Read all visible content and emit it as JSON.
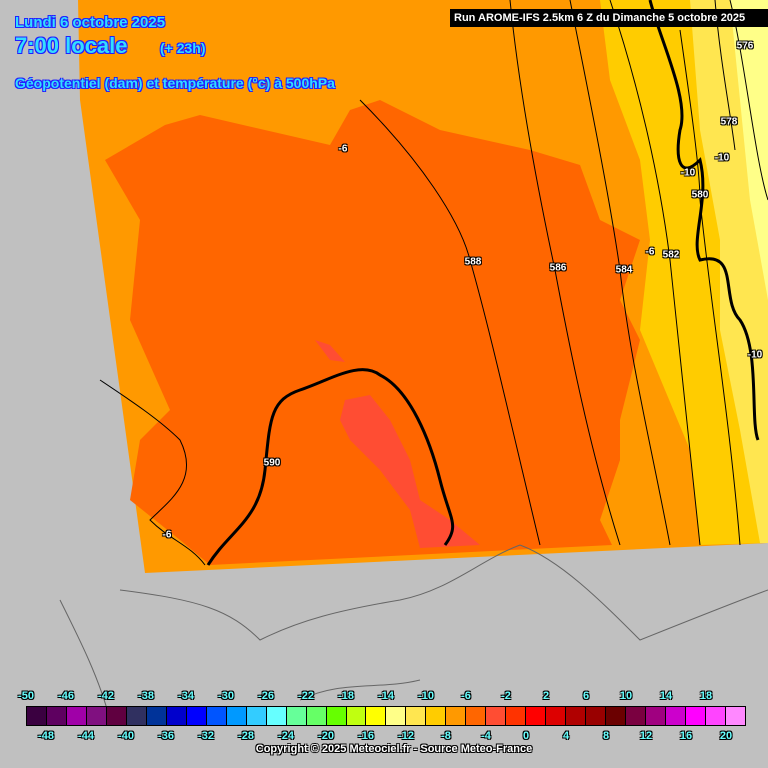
{
  "header": {
    "date": "Lundi 6 octobre 2025",
    "time": "7:00 locale",
    "lead": "(+ 23h)",
    "parameter": "Géopotentiel (dam) et température (°c) à 500hPa",
    "run": "Run AROME-IFS 2.5km 6 Z du Dimanche 5 octobre 2025"
  },
  "contour_labels": [
    "576",
    "578",
    "-10",
    "-10",
    "580",
    "-6",
    "582",
    "584",
    "586",
    "588",
    "-6",
    "590",
    "-6",
    "-10"
  ],
  "colors": {
    "outside_domain": "#c0c0c0",
    "temp_minus_8": "#ffcc00",
    "temp_minus_6": "#ff9900",
    "temp_minus_4": "#ff6600",
    "temp_minus_2": "#ff4d33",
    "temp_minus_10": "#ffe650",
    "temp_minus_12": "#ffff88"
  },
  "legend": {
    "labels": [
      "-50",
      "-48",
      "-46",
      "-44",
      "-42",
      "-40",
      "-38",
      "-36",
      "-34",
      "-32",
      "-30",
      "-28",
      "-26",
      "-24",
      "-22",
      "-20",
      "-18",
      "-16",
      "-14",
      "-12",
      "-10",
      "-8",
      "-6",
      "-4",
      "-2",
      "0",
      "2",
      "4",
      "6",
      "8",
      "10",
      "12",
      "14",
      "16",
      "18",
      "20"
    ],
    "colors": [
      "#3a0040",
      "#5e0060",
      "#a000a8",
      "#801080",
      "#600040",
      "#303060",
      "#003399",
      "#0000cc",
      "#0000ff",
      "#0055ff",
      "#0099ff",
      "#33ccff",
      "#66ffff",
      "#66ff99",
      "#66ff66",
      "#66ff00",
      "#c0ff10",
      "#ffff00",
      "#ffff88",
      "#ffe650",
      "#ffcc00",
      "#ff9900",
      "#ff6600",
      "#ff4d33",
      "#ff3300",
      "#ff0000",
      "#dd0000",
      "#b00000",
      "#990000",
      "#6b0000",
      "#7a0040",
      "#a00080",
      "#cc00cc",
      "#ff00ff",
      "#ff44ff",
      "#ff88ff"
    ]
  },
  "footer": {
    "copyright": "Copyright © 2025 Meteociel.fr - Source Meteo-France"
  }
}
